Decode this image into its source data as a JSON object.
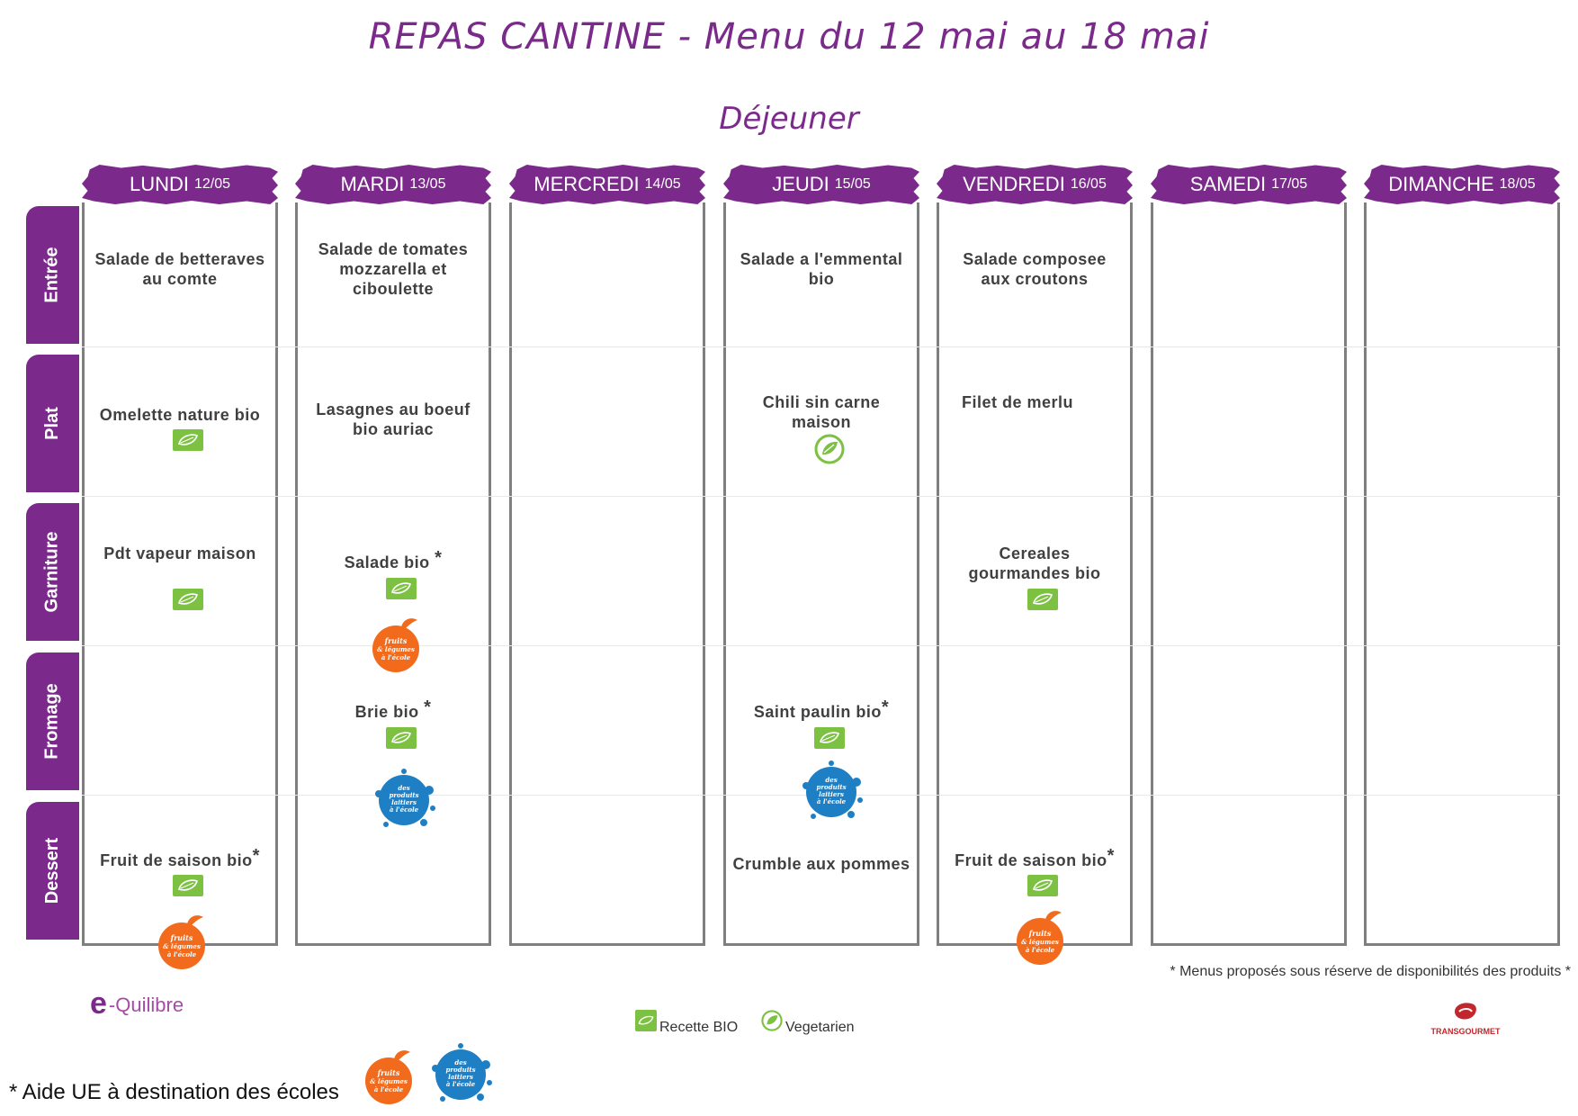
{
  "title": "REPAS CANTINE - Menu du 12 mai au 18 mai",
  "subtitle": "Déjeuner",
  "row_labels": [
    "Entrée",
    "Plat",
    "Garniture",
    "Fromage",
    "Dessert"
  ],
  "days": [
    {
      "name": "LUNDI",
      "date": "12/05"
    },
    {
      "name": "MARDI",
      "date": "13/05"
    },
    {
      "name": "MERCREDI",
      "date": "14/05"
    },
    {
      "name": "JEUDI",
      "date": "15/05"
    },
    {
      "name": "VENDREDI",
      "date": "16/05"
    },
    {
      "name": "SAMEDI",
      "date": "17/05"
    },
    {
      "name": "DIMANCHE",
      "date": "18/05"
    }
  ],
  "dishes": {
    "lundi_entree": "Salade de betteraves au comte",
    "lundi_plat": "Omelette nature bio",
    "lundi_garniture": "Pdt vapeur maison",
    "lundi_dessert": "Fruit de saison bio",
    "mardi_entree": "Salade de tomates mozzarella et ciboulette",
    "mardi_plat": "Lasagnes au boeuf bio auriac",
    "mardi_garniture": "Salade bio",
    "mardi_fromage": "Brie bio",
    "jeudi_entree": "Salade a l'emmental bio",
    "jeudi_plat": "Chili sin carne maison",
    "jeudi_fromage": "Saint paulin bio",
    "jeudi_dessert": "Crumble aux pommes",
    "vendredi_entree": "Salade composee aux croutons",
    "vendredi_plat": "Filet de merlu",
    "vendredi_garniture": "Cereales gourmandes bio",
    "vendredi_dessert": "Fruit de saison bio"
  },
  "asterisk": "*",
  "logo_text": {
    "fruits_line1": "fruits",
    "fruits_line2": "& légumes",
    "fruits_line3": "à l'école",
    "dairy_line1": "des",
    "dairy_line2": "produits",
    "dairy_line3": "laitiers",
    "dairy_line4": "à l'école"
  },
  "footnote": "* Menus proposés sous réserve de disponibilités des produits *",
  "legend": {
    "bio_label": "Recette BIO",
    "veg_label": "Vegetarien"
  },
  "aide": "* Aide UE à destination des écoles",
  "brand_left": {
    "e": "e",
    "rest": "-Quilibre"
  },
  "brand_right": "TRANSGOURMET",
  "colors": {
    "purple": "#7b2a8c",
    "bio_green": "#7dc142",
    "fruit_orange": "#f26b1d",
    "dairy_blue": "#1f7fc4",
    "border": "#7f7f7f"
  }
}
